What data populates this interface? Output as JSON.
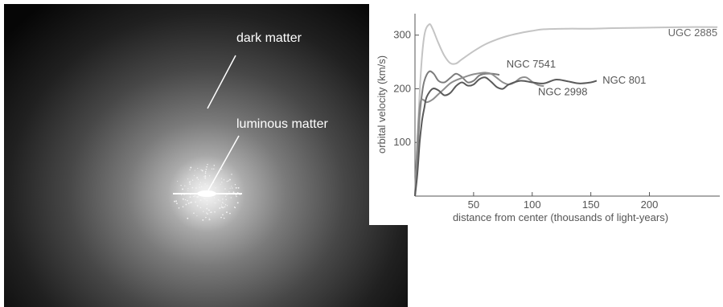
{
  "galaxy": {
    "dark_matter_label": "dark matter",
    "luminous_matter_label": "luminous matter"
  },
  "chart_data": {
    "type": "line",
    "xlabel": "distance from center (thousands of light-years)",
    "ylabel": "orbital velocity (km/s)",
    "xlim": [
      0,
      260
    ],
    "ylim": [
      0,
      340
    ],
    "xticks": [
      50,
      100,
      150,
      200
    ],
    "yticks": [
      100,
      200,
      300
    ],
    "grid": false,
    "series": [
      {
        "name": "UGC 2885",
        "color": "#c4c4c4",
        "label_at": [
          258,
          298
        ],
        "points": [
          [
            0,
            0
          ],
          [
            2,
            100
          ],
          [
            5,
            230
          ],
          [
            8,
            300
          ],
          [
            12,
            320
          ],
          [
            15,
            312
          ],
          [
            20,
            285
          ],
          [
            25,
            262
          ],
          [
            30,
            248
          ],
          [
            35,
            247
          ],
          [
            40,
            255
          ],
          [
            50,
            270
          ],
          [
            60,
            283
          ],
          [
            70,
            292
          ],
          [
            80,
            299
          ],
          [
            90,
            304
          ],
          [
            100,
            308
          ],
          [
            110,
            311
          ],
          [
            130,
            312
          ],
          [
            150,
            312
          ],
          [
            170,
            313
          ],
          [
            200,
            314
          ],
          [
            230,
            315
          ],
          [
            258,
            315
          ]
        ]
      },
      {
        "name": "NGC 7541",
        "color": "#7c7c7c",
        "label_at": [
          78,
          240
        ],
        "points": [
          [
            0,
            0
          ],
          [
            2,
            70
          ],
          [
            4,
            150
          ],
          [
            6,
            190
          ],
          [
            8,
            215
          ],
          [
            12,
            232
          ],
          [
            16,
            228
          ],
          [
            20,
            215
          ],
          [
            25,
            212
          ],
          [
            30,
            220
          ],
          [
            35,
            228
          ],
          [
            40,
            222
          ],
          [
            45,
            212
          ],
          [
            50,
            215
          ],
          [
            55,
            225
          ],
          [
            60,
            228
          ],
          [
            66,
            228
          ],
          [
            72,
            226
          ]
        ]
      },
      {
        "name": "NGC 2998",
        "color": "#8e8e8e",
        "label_at": [
          105,
          188
        ],
        "points": [
          [
            0,
            0
          ],
          [
            2,
            100
          ],
          [
            4,
            165
          ],
          [
            6,
            180
          ],
          [
            10,
            175
          ],
          [
            15,
            180
          ],
          [
            20,
            190
          ],
          [
            25,
            200
          ],
          [
            30,
            210
          ],
          [
            35,
            216
          ],
          [
            40,
            220
          ],
          [
            45,
            224
          ],
          [
            50,
            227
          ],
          [
            55,
            229
          ],
          [
            60,
            230
          ],
          [
            65,
            228
          ],
          [
            70,
            220
          ],
          [
            75,
            212
          ],
          [
            80,
            208
          ],
          [
            85,
            212
          ],
          [
            90,
            220
          ],
          [
            95,
            221
          ],
          [
            100,
            213
          ],
          [
            105,
            207
          ],
          [
            110,
            205
          ]
        ]
      },
      {
        "name": "NGC 801",
        "color": "#5a5a5a",
        "label_at": [
          160,
          210
        ],
        "points": [
          [
            0,
            0
          ],
          [
            2,
            40
          ],
          [
            4,
            100
          ],
          [
            6,
            140
          ],
          [
            8,
            165
          ],
          [
            10,
            185
          ],
          [
            15,
            200
          ],
          [
            20,
            197
          ],
          [
            25,
            188
          ],
          [
            30,
            192
          ],
          [
            35,
            205
          ],
          [
            40,
            212
          ],
          [
            45,
            206
          ],
          [
            50,
            208
          ],
          [
            55,
            218
          ],
          [
            60,
            221
          ],
          [
            65,
            213
          ],
          [
            70,
            203
          ],
          [
            75,
            200
          ],
          [
            80,
            208
          ],
          [
            90,
            215
          ],
          [
            100,
            212
          ],
          [
            110,
            210
          ],
          [
            120,
            217
          ],
          [
            130,
            214
          ],
          [
            140,
            210
          ],
          [
            150,
            212
          ],
          [
            155,
            215
          ]
        ]
      }
    ]
  }
}
